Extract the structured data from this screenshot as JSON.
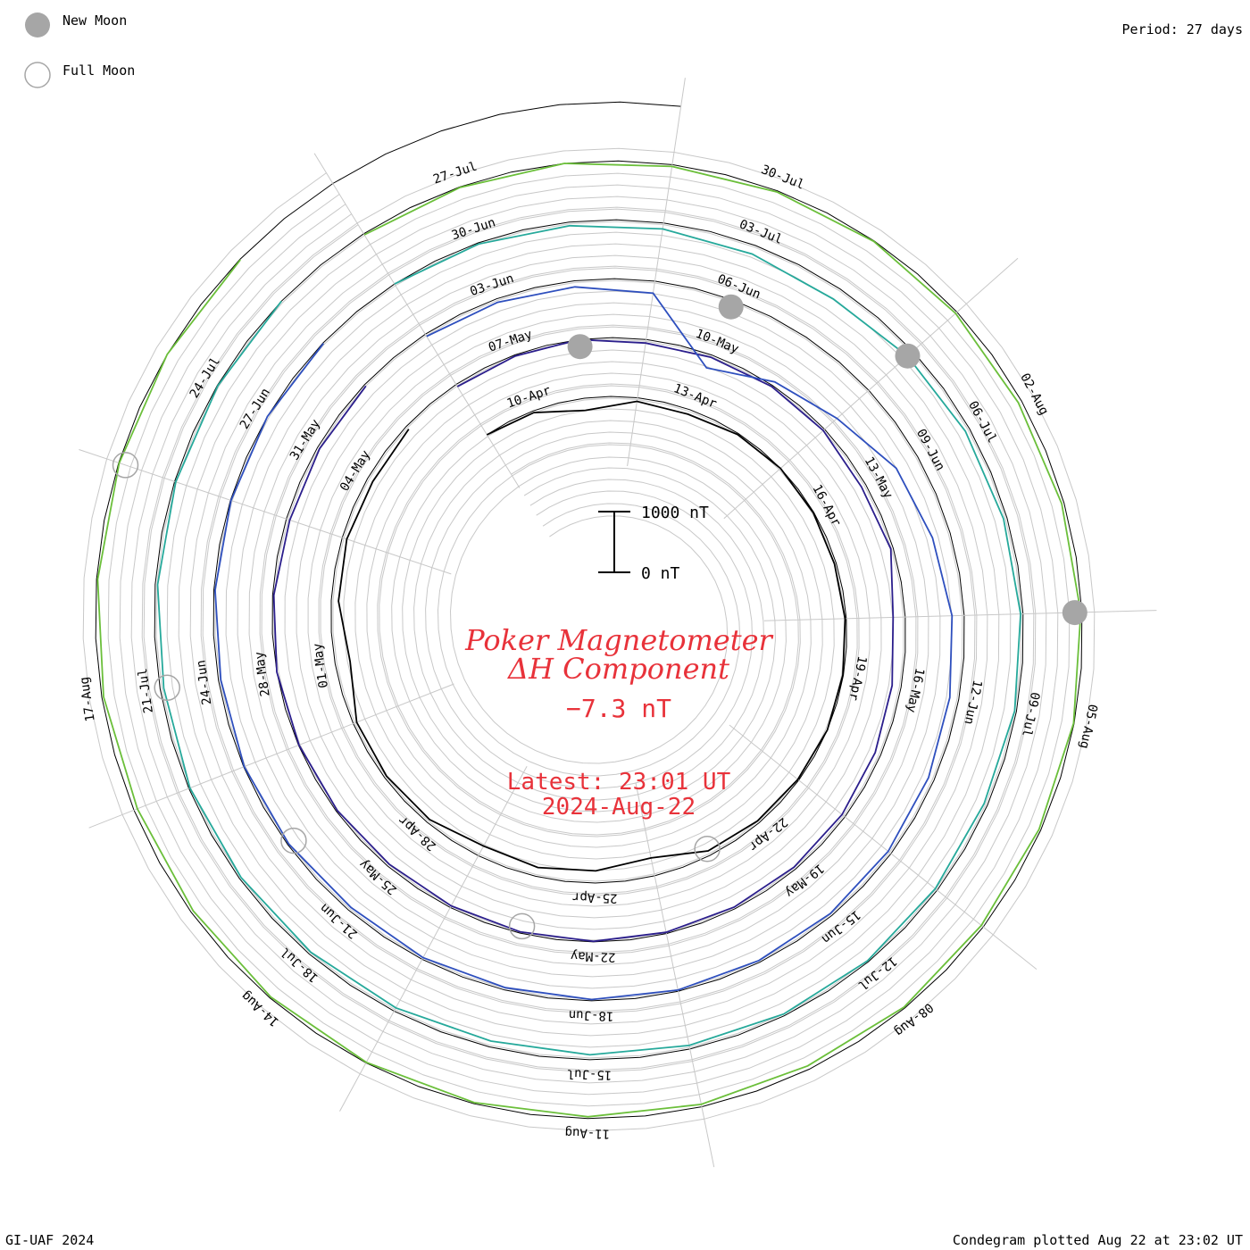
{
  "legend": {
    "new_moon": "New Moon",
    "full_moon": "Full Moon",
    "period": "Period: 27 days"
  },
  "center": {
    "title_line1": "Poker Magnetometer",
    "title_line2": "ΔH Component",
    "current_value": "−7.3 nT",
    "latest_time": "Latest: 23:01 UT",
    "latest_date": "2024-Aug-22"
  },
  "scale_bar": {
    "top_label": "1000 nT",
    "bottom_label": "0 nT"
  },
  "footer": {
    "credit": "GI-UAF 2024",
    "plotted": "Condegram plotted Aug 22 at 23:02 UT"
  },
  "chart_data": {
    "type": "line",
    "subtype": "condegram-spiral",
    "title": "Poker Magnetometer ΔH Component",
    "period_days": 27,
    "scale_nT": [
      0,
      1000
    ],
    "start_date": "2024-Apr-09",
    "end_date": "2024-Aug-22",
    "series": [
      {
        "color": "#000000",
        "values": [
          0,
          -30,
          -200,
          -60,
          -80,
          -20,
          0,
          -10,
          -30,
          -20,
          -10,
          0,
          -20,
          -40,
          -80,
          -300,
          -200,
          -150,
          -180,
          -60,
          -40,
          -60,
          -250,
          -120,
          -80,
          -100,
          -60
        ]
      },
      {
        "color": "#2b1e8c",
        "values": [
          -40,
          -20,
          0,
          -60,
          -40,
          -20,
          -30,
          -80,
          -40,
          -200,
          -150,
          -100,
          -60,
          -40,
          -30,
          -20,
          -10,
          -20,
          -30,
          -40,
          -20,
          -10,
          0,
          -20,
          -60,
          -40,
          -30
        ]
      },
      {
        "color": "#2e4fbe",
        "values": [
          -40,
          -60,
          -100,
          -200,
          -1200,
          -900,
          -700,
          -400,
          -300,
          -200,
          -150,
          -100,
          -60,
          -40,
          -30,
          -20,
          -20,
          -40,
          -30,
          -60,
          -20,
          -10,
          -40,
          -20,
          -10,
          0,
          -10
        ]
      },
      {
        "color": "#26a99b",
        "values": [
          0,
          -20,
          -60,
          -100,
          -150,
          -200,
          -120,
          -80,
          -60,
          -40,
          -30,
          -60,
          -40,
          -20,
          -30,
          -60,
          -80,
          -100,
          -60,
          -40,
          -30,
          -20,
          -60,
          -40,
          -20,
          -10,
          0
        ]
      },
      {
        "color": "#6bbf3a",
        "values": [
          -20,
          -10,
          0,
          -30,
          -20,
          -10,
          -30,
          -60,
          -40,
          -20,
          -10,
          -30,
          -40,
          -20,
          -60,
          -40,
          -30,
          -20,
          -10,
          -20,
          -40,
          -60,
          -30,
          -20,
          -10,
          0,
          -10
        ]
      },
      {
        "color": "#c4b41e",
        "values": [
          0,
          -30,
          -60,
          -80,
          -40,
          -30,
          -20,
          -60,
          -40,
          -20,
          -100,
          -60,
          -40,
          -20,
          -10,
          -30,
          -20,
          -10,
          -40,
          -60,
          -30,
          -20,
          -40,
          -20,
          -30,
          -60,
          -40
        ]
      },
      {
        "color": "#c8821a",
        "values": [
          -20,
          -40,
          -80,
          -100,
          -60,
          -40,
          -30,
          -20,
          -10,
          -20,
          -30,
          -60,
          -40,
          -400,
          -300,
          -120,
          -60,
          -40,
          -30,
          -20,
          -10,
          -20,
          -30,
          -40,
          -20,
          -10,
          -30
        ]
      },
      {
        "color": "#c4281a",
        "values": [
          -10,
          -20,
          -30,
          -40,
          -20,
          -60,
          -40,
          -20,
          -30,
          -10,
          0,
          -20,
          -40,
          -60,
          -80,
          -40,
          -20,
          -10,
          -60,
          -40,
          -20,
          -30,
          -10,
          0,
          0,
          0,
          0
        ]
      }
    ],
    "date_labels": [
      "10-Apr",
      "13-Apr",
      "16-Apr",
      "19-Apr",
      "22-Apr",
      "25-Apr",
      "28-Apr",
      "01-May",
      "04-May",
      "07-May",
      "10-May",
      "13-May",
      "16-May",
      "19-May",
      "22-May",
      "25-May",
      "28-May",
      "31-May",
      "03-Jun",
      "06-Jun",
      "09-Jun",
      "12-Jun",
      "15-Jun",
      "18-Jun",
      "21-Jun",
      "24-Jun",
      "27-Jun",
      "30-Jun",
      "03-Jul",
      "06-Jul",
      "09-Jul",
      "12-Jul",
      "15-Jul",
      "18-Jul",
      "21-Jul",
      "24-Jul",
      "27-Jul",
      "30-Jul",
      "02-Aug",
      "05-Aug",
      "08-Aug",
      "11-Aug",
      "14-Aug",
      "17-Aug"
    ],
    "new_moons": [
      "2024-Apr-08",
      "2024-May-08",
      "2024-Jun-06",
      "2024-Jul-05",
      "2024-Aug-04"
    ],
    "full_moons": [
      "2024-Apr-23",
      "2024-May-23",
      "2024-Jun-22",
      "2024-Jul-21",
      "2024-Aug-19"
    ]
  }
}
